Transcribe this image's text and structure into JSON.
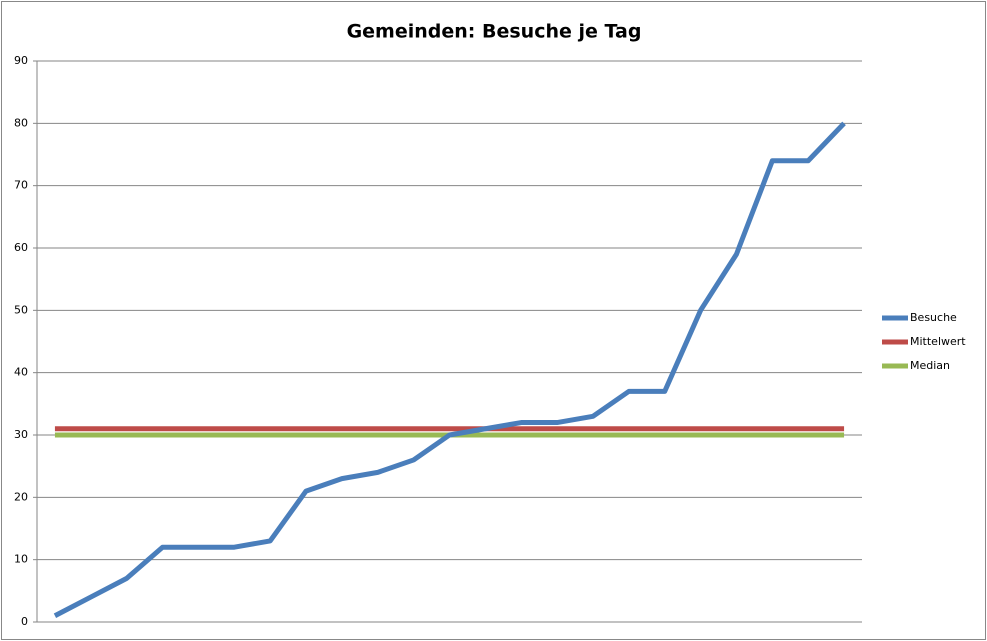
{
  "chart_data": {
    "type": "line",
    "title": "Gemeinden: Besuche je Tag",
    "categories": [
      null,
      null,
      null,
      null,
      null,
      null,
      null,
      null,
      null,
      null,
      null,
      null,
      null,
      null,
      null,
      null,
      null,
      null,
      null,
      null,
      null,
      null,
      null
    ],
    "series": [
      {
        "name": "Besuche",
        "color": "#4a7ebb",
        "values": [
          1,
          4,
          7,
          12,
          12,
          12,
          13,
          21,
          23,
          24,
          26,
          30,
          31,
          32,
          32,
          33,
          37,
          37,
          50,
          59,
          74,
          74,
          80
        ]
      },
      {
        "name": "Mittelwert",
        "color": "#be4b48",
        "values": [
          31,
          31,
          31,
          31,
          31,
          31,
          31,
          31,
          31,
          31,
          31,
          31,
          31,
          31,
          31,
          31,
          31,
          31,
          31,
          31,
          31,
          31,
          31
        ]
      },
      {
        "name": "Median",
        "color": "#98b954",
        "values": [
          30,
          30,
          30,
          30,
          30,
          30,
          30,
          30,
          30,
          30,
          30,
          30,
          30,
          30,
          30,
          30,
          30,
          30,
          30,
          30,
          30,
          30,
          30
        ]
      }
    ],
    "ylim": [
      0,
      90
    ],
    "yticks": [
      0,
      10,
      20,
      30,
      40,
      50,
      60,
      70,
      80,
      90
    ],
    "grid": true,
    "legend": "right"
  }
}
